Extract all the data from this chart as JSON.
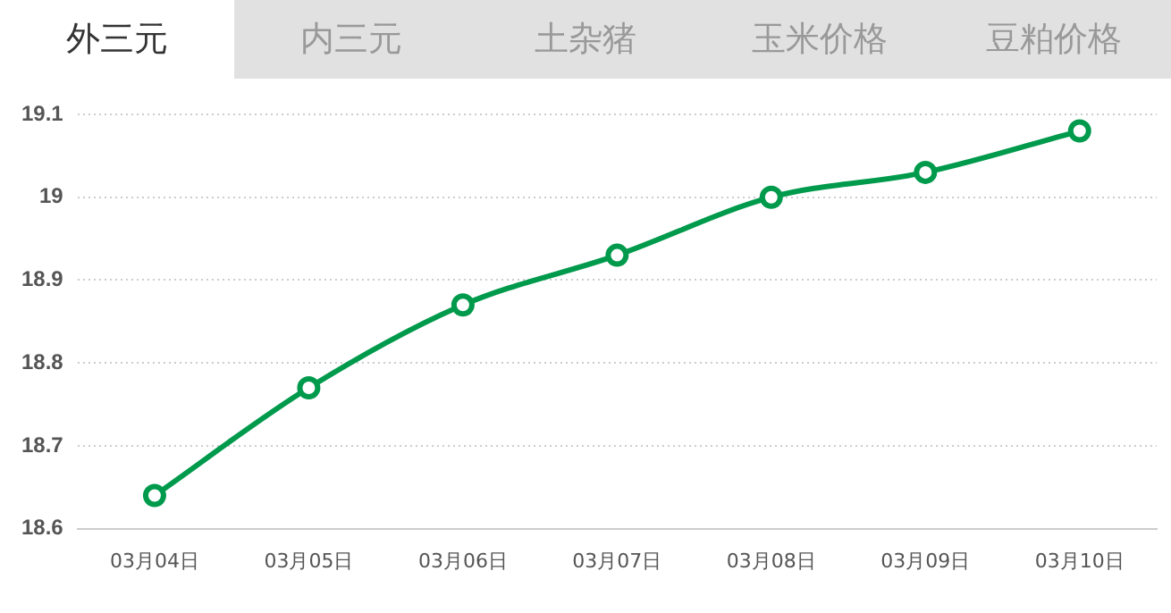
{
  "chart_data": {
    "type": "line",
    "annotations": [
      "外三元",
      "内三元",
      "土杂猪",
      "玉米价格",
      "豆粕价格"
    ],
    "categories": [
      "03月04日",
      "03月05日",
      "03月06日",
      "03月07日",
      "03月08日",
      "03月09日",
      "03月10日"
    ],
    "series": [
      {
        "color": "#009a4c",
        "values": [
          18.64,
          18.77,
          18.87,
          18.93,
          19.0,
          19.03,
          19.08
        ]
      }
    ],
    "ylim": [
      18.6,
      19.1
    ],
    "yticks": [
      18.6,
      18.7,
      18.8,
      18.9,
      19,
      19.1
    ],
    "grid": "y",
    "legend": false,
    "marker": "circle",
    "line_style": "solid"
  }
}
